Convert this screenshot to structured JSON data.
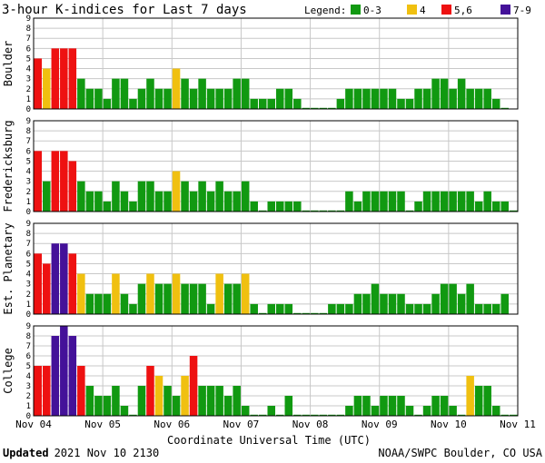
{
  "title": "3-hour K-indices for Last 7 days",
  "legend": {
    "label": "Legend:",
    "items": [
      {
        "label": "0-3",
        "color": "#119911"
      },
      {
        "label": "4",
        "color": "#f0c010"
      },
      {
        "label": "5,6",
        "color": "#ee1111"
      },
      {
        "label": "7-9",
        "color": "#441199"
      }
    ]
  },
  "footer": {
    "updated_label": "Updated",
    "updated_value": "2021 Nov 10 2130",
    "source": "NOAA/SWPC Boulder, CO USA"
  },
  "chart_data": {
    "type": "bar",
    "xlabel": "Coordinate Universal Time (UTC)",
    "x_ticks": [
      "Nov 04",
      "Nov 05",
      "Nov 06",
      "Nov 07",
      "Nov 08",
      "Nov 09",
      "Nov 10",
      "Nov 11"
    ],
    "y_ticks": [
      "0",
      "1",
      "2",
      "3",
      "4",
      "5",
      "6",
      "7",
      "8",
      "9"
    ],
    "ylim": [
      0,
      9
    ],
    "grid": true,
    "panels": [
      {
        "name": "Boulder",
        "values": [
          5,
          4,
          6,
          6,
          6,
          3,
          2,
          2,
          1,
          3,
          3,
          1,
          2,
          3,
          2,
          2,
          4,
          3,
          2,
          3,
          2,
          2,
          2,
          3,
          3,
          1,
          1,
          1,
          2,
          2,
          1,
          0,
          0,
          0,
          0,
          1,
          2,
          2,
          2,
          2,
          2,
          2,
          1,
          1,
          2,
          2,
          3,
          3,
          2,
          3,
          2,
          2,
          2,
          1,
          0
        ]
      },
      {
        "name": "Fredericksburg",
        "values": [
          6,
          3,
          6,
          6,
          5,
          3,
          2,
          2,
          1,
          3,
          2,
          1,
          3,
          3,
          2,
          2,
          4,
          3,
          2,
          3,
          2,
          3,
          2,
          2,
          3,
          1,
          0,
          1,
          1,
          1,
          1,
          0,
          0,
          0,
          0,
          0,
          2,
          1,
          2,
          2,
          2,
          2,
          2,
          0,
          1,
          2,
          2,
          2,
          2,
          2,
          2,
          1,
          2,
          1,
          1,
          0
        ]
      },
      {
        "name": "Est. Planetary",
        "values": [
          6,
          5,
          7,
          7,
          6,
          4,
          2,
          2,
          2,
          4,
          2,
          1,
          3,
          4,
          3,
          3,
          4,
          3,
          3,
          3,
          1,
          4,
          3,
          3,
          4,
          1,
          0,
          1,
          1,
          1,
          0,
          0,
          0,
          0,
          1,
          1,
          1,
          2,
          2,
          3,
          2,
          2,
          2,
          1,
          1,
          1,
          2,
          3,
          3,
          2,
          3,
          1,
          1,
          1,
          2
        ]
      },
      {
        "name": "College",
        "values": [
          5,
          5,
          8,
          9,
          8,
          5,
          3,
          2,
          2,
          3,
          1,
          0,
          3,
          5,
          4,
          3,
          2,
          4,
          6,
          3,
          3,
          3,
          2,
          3,
          1,
          0,
          0,
          1,
          0,
          2,
          0,
          0,
          0,
          0,
          0,
          0,
          1,
          2,
          2,
          1,
          2,
          2,
          2,
          1,
          0,
          1,
          2,
          2,
          1,
          0,
          4,
          3,
          3,
          1,
          0,
          0
        ]
      }
    ]
  }
}
